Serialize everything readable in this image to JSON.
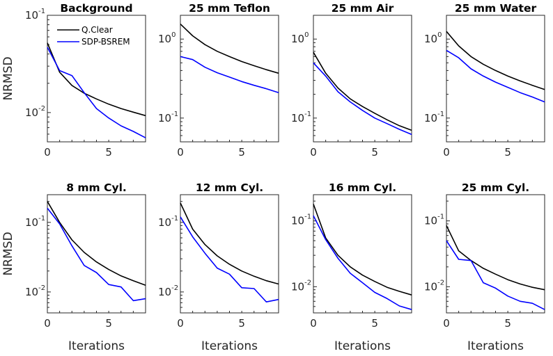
{
  "legend": [
    {
      "name": "Q.Clear",
      "color": "#000000"
    },
    {
      "name": "SDP-BSREM",
      "color": "#0000ff"
    }
  ],
  "ylabel": "NRMSD",
  "xlabel": "Iterations",
  "chart_data": [
    {
      "type": "line",
      "title": "Background",
      "xlim": [
        0,
        8
      ],
      "yscale": "log",
      "ylim": [
        0.005,
        0.1
      ],
      "xticks": [
        0,
        5
      ],
      "yticks": [
        {
          "base": "10",
          "exp": "-1",
          "value": 0.1
        },
        {
          "base": "10",
          "exp": "-2",
          "value": 0.01
        }
      ],
      "series": [
        {
          "name": "Q.Clear",
          "x": [
            0,
            1,
            2,
            3,
            4,
            5,
            6,
            7,
            8
          ],
          "values": [
            0.052,
            0.026,
            0.019,
            0.0158,
            0.0138,
            0.0122,
            0.011,
            0.0101,
            0.0093
          ]
        },
        {
          "name": "SDP-BSREM",
          "x": [
            0,
            1,
            2,
            3,
            4,
            5,
            6,
            7,
            8
          ],
          "values": [
            0.047,
            0.027,
            0.024,
            0.016,
            0.011,
            0.0088,
            0.0073,
            0.0064,
            0.0055
          ]
        }
      ]
    },
    {
      "type": "line",
      "title": "25 mm Teflon",
      "xlim": [
        0,
        8
      ],
      "yscale": "log",
      "ylim": [
        0.05,
        2
      ],
      "xticks": [
        0,
        5
      ],
      "yticks": [
        {
          "base": "10",
          "exp": "0",
          "value": 1
        },
        {
          "base": "10",
          "exp": "-1",
          "value": 0.1
        }
      ],
      "series": [
        {
          "name": "Q.Clear",
          "x": [
            0,
            1,
            2,
            3,
            4,
            5,
            6,
            7,
            8
          ],
          "values": [
            1.55,
            1.1,
            0.85,
            0.7,
            0.6,
            0.52,
            0.46,
            0.41,
            0.37
          ]
        },
        {
          "name": "SDP-BSREM",
          "x": [
            0,
            1,
            2,
            3,
            4,
            5,
            6,
            7,
            8
          ],
          "values": [
            0.6,
            0.55,
            0.44,
            0.375,
            0.33,
            0.29,
            0.26,
            0.235,
            0.21
          ]
        }
      ]
    },
    {
      "type": "line",
      "title": "25 mm Air",
      "xlim": [
        0,
        8
      ],
      "yscale": "log",
      "ylim": [
        0.05,
        2
      ],
      "xticks": [
        0,
        5
      ],
      "yticks": [
        {
          "base": "10",
          "exp": "0",
          "value": 1
        },
        {
          "base": "10",
          "exp": "-1",
          "value": 0.1
        }
      ],
      "series": [
        {
          "name": "Q.Clear",
          "x": [
            0,
            1,
            2,
            3,
            4,
            5,
            6,
            7,
            8
          ],
          "values": [
            0.68,
            0.37,
            0.24,
            0.175,
            0.14,
            0.115,
            0.095,
            0.08,
            0.07
          ]
        },
        {
          "name": "SDP-BSREM",
          "x": [
            0,
            1,
            2,
            3,
            4,
            5,
            6,
            7,
            8
          ],
          "values": [
            0.5,
            0.34,
            0.215,
            0.16,
            0.125,
            0.1,
            0.085,
            0.072,
            0.062
          ]
        }
      ]
    },
    {
      "type": "line",
      "title": "25 mm Water",
      "xlim": [
        0,
        8
      ],
      "yscale": "log",
      "ylim": [
        0.05,
        2
      ],
      "xticks": [
        0,
        5
      ],
      "yticks": [
        {
          "base": "10",
          "exp": "0",
          "value": 1
        },
        {
          "base": "10",
          "exp": "-1",
          "value": 0.1
        }
      ],
      "series": [
        {
          "name": "Q.Clear",
          "x": [
            0,
            1,
            2,
            3,
            4,
            5,
            6,
            7,
            8
          ],
          "values": [
            1.25,
            0.82,
            0.6,
            0.48,
            0.4,
            0.34,
            0.295,
            0.26,
            0.23
          ]
        },
        {
          "name": "SDP-BSREM",
          "x": [
            0,
            1,
            2,
            3,
            4,
            5,
            6,
            7,
            8
          ],
          "values": [
            0.72,
            0.58,
            0.42,
            0.34,
            0.285,
            0.245,
            0.21,
            0.185,
            0.16
          ]
        }
      ]
    },
    {
      "type": "line",
      "title": "8 mm Cyl.",
      "xlim": [
        0,
        8
      ],
      "yscale": "log",
      "ylim": [
        0.005,
        0.25
      ],
      "xticks": [
        0,
        5
      ],
      "yticks": [
        {
          "base": "10",
          "exp": "-1",
          "value": 0.1
        },
        {
          "base": "10",
          "exp": "-2",
          "value": 0.01
        }
      ],
      "series": [
        {
          "name": "Q.Clear",
          "x": [
            0,
            1,
            2,
            3,
            4,
            5,
            6,
            7,
            8
          ],
          "values": [
            0.2,
            0.1,
            0.056,
            0.037,
            0.027,
            0.021,
            0.017,
            0.0145,
            0.0125
          ]
        },
        {
          "name": "SDP-BSREM",
          "x": [
            0,
            1,
            2,
            3,
            4,
            5,
            6,
            7,
            8
          ],
          "values": [
            0.16,
            0.095,
            0.046,
            0.024,
            0.019,
            0.0128,
            0.0118,
            0.0075,
            0.008
          ]
        }
      ]
    },
    {
      "type": "line",
      "title": "12 mm Cyl.",
      "xlim": [
        0,
        8
      ],
      "yscale": "log",
      "ylim": [
        0.005,
        0.25
      ],
      "xticks": [
        0,
        5
      ],
      "yticks": [
        {
          "base": "10",
          "exp": "-1",
          "value": 0.1
        },
        {
          "base": "10",
          "exp": "-2",
          "value": 0.01
        }
      ],
      "series": [
        {
          "name": "Q.Clear",
          "x": [
            0,
            1,
            2,
            3,
            4,
            5,
            6,
            7,
            8
          ],
          "values": [
            0.19,
            0.08,
            0.048,
            0.033,
            0.025,
            0.02,
            0.0168,
            0.0145,
            0.013
          ]
        },
        {
          "name": "SDP-BSREM",
          "x": [
            0,
            1,
            2,
            3,
            4,
            5,
            6,
            7,
            8
          ],
          "values": [
            0.12,
            0.062,
            0.036,
            0.022,
            0.018,
            0.0115,
            0.0112,
            0.0072,
            0.0078
          ]
        }
      ]
    },
    {
      "type": "line",
      "title": "16 mm Cyl.",
      "xlim": [
        0,
        8
      ],
      "yscale": "log",
      "ylim": [
        0.004,
        0.25
      ],
      "xticks": [
        0,
        5
      ],
      "yticks": [
        {
          "base": "10",
          "exp": "-1",
          "value": 0.1
        },
        {
          "base": "10",
          "exp": "-2",
          "value": 0.01
        }
      ],
      "series": [
        {
          "name": "Q.Clear",
          "x": [
            0,
            1,
            2,
            3,
            4,
            5,
            6,
            7,
            8
          ],
          "values": [
            0.18,
            0.055,
            0.03,
            0.02,
            0.015,
            0.012,
            0.0098,
            0.0085,
            0.0075
          ]
        },
        {
          "name": "SDP-BSREM",
          "x": [
            0,
            1,
            2,
            3,
            4,
            5,
            6,
            7,
            8
          ],
          "values": [
            0.12,
            0.052,
            0.027,
            0.016,
            0.0115,
            0.0082,
            0.0066,
            0.0051,
            0.0045
          ]
        }
      ]
    },
    {
      "type": "line",
      "title": "25 mm Cyl.",
      "xlim": [
        0,
        8
      ],
      "yscale": "log",
      "ylim": [
        0.004,
        0.25
      ],
      "xticks": [
        0,
        5
      ],
      "yticks": [
        {
          "base": "10",
          "exp": "-1",
          "value": 0.1
        },
        {
          "base": "10",
          "exp": "-2",
          "value": 0.01
        }
      ],
      "series": [
        {
          "name": "Q.Clear",
          "x": [
            0,
            1,
            2,
            3,
            4,
            5,
            6,
            7,
            8
          ],
          "values": [
            0.085,
            0.035,
            0.025,
            0.019,
            0.0155,
            0.0128,
            0.011,
            0.0098,
            0.009
          ]
        },
        {
          "name": "SDP-BSREM",
          "x": [
            0,
            1,
            2,
            3,
            4,
            5,
            6,
            7,
            8
          ],
          "values": [
            0.05,
            0.026,
            0.025,
            0.0115,
            0.0095,
            0.0072,
            0.006,
            0.0056,
            0.0045
          ]
        }
      ]
    }
  ]
}
